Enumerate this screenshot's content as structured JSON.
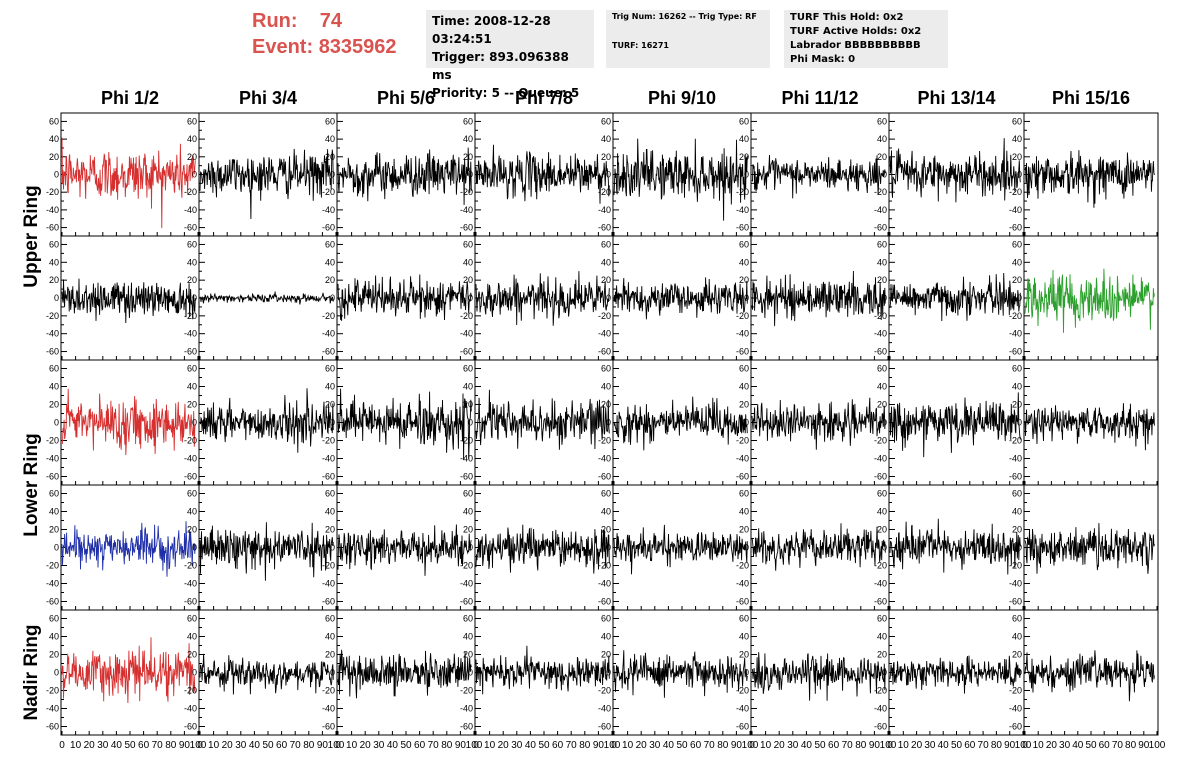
{
  "header": {
    "run_label": "Run:",
    "run_value": "74",
    "event_label": "Event:",
    "event_value": "8335962",
    "time": "Time: 2008-12-28 03:24:51",
    "trigger": "Trigger: 893.096388 ms",
    "priority": "Priority: 5 -- Queue: 5",
    "trig_num": "Trig Num: 16262 -- Trig Type: RF",
    "turf": "TURF: 16271",
    "turf_this_hold": "TURF This Hold: 0x2",
    "turf_active_holds": "TURF Active Holds: 0x2",
    "labrador": "Labrador BBBBBBBBBB",
    "phi_mask": "Phi Mask: 0"
  },
  "chart_data": {
    "type": "line",
    "columns": [
      "Phi 1/2",
      "Phi 3/4",
      "Phi 5/6",
      "Phi 7/8",
      "Phi 9/10",
      "Phi 11/12",
      "Phi 13/14",
      "Phi 15/16"
    ],
    "rings": [
      "Upper Ring",
      "Lower Ring",
      "Nadir Ring"
    ],
    "ring_rows": [
      [
        0,
        1
      ],
      [
        2,
        3
      ],
      [
        4,
        4
      ]
    ],
    "ylim": [
      -65,
      65
    ],
    "yticks": [
      -60,
      -40,
      -20,
      0,
      20,
      40,
      60
    ],
    "xlim": [
      0,
      100
    ],
    "xticks": [
      0,
      10,
      20,
      30,
      40,
      50,
      60,
      70,
      80,
      90,
      100
    ],
    "colors": {
      "red": "#d62f2f",
      "green": "#2ca02c",
      "blue": "#1f2fa8",
      "black": "#000000"
    },
    "panel_colors": [
      [
        "red",
        "black",
        "black",
        "black",
        "black",
        "black",
        "black",
        "black"
      ],
      [
        "black",
        "black",
        "black",
        "black",
        "black",
        "black",
        "black",
        "green"
      ],
      [
        "red",
        "black",
        "black",
        "black",
        "black",
        "black",
        "black",
        "black"
      ],
      [
        "blue",
        "black",
        "black",
        "black",
        "black",
        "black",
        "black",
        "black"
      ],
      [
        "red",
        "black",
        "black",
        "black",
        "black",
        "black",
        "black",
        "black"
      ]
    ],
    "panel_amplitude": [
      [
        20,
        16,
        16,
        16,
        18,
        12,
        16,
        16
      ],
      [
        14,
        3,
        14,
        14,
        12,
        14,
        13,
        18
      ],
      [
        18,
        14,
        18,
        16,
        15,
        13,
        15,
        12
      ],
      [
        13,
        14,
        13,
        14,
        11,
        13,
        13,
        15
      ],
      [
        17,
        11,
        13,
        12,
        12,
        13,
        11,
        12
      ]
    ],
    "samples_per_trace": 260,
    "trace_x_end": 98
  }
}
